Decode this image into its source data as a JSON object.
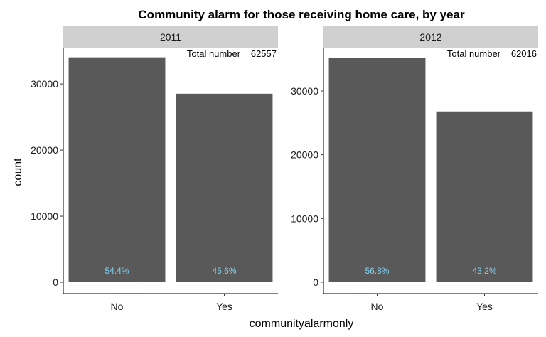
{
  "chart_data": {
    "type": "bar",
    "title": "Community alarm for those receiving home care, by year",
    "xlabel": "communityalarmonly",
    "ylabel": "count",
    "categories": [
      "No",
      "Yes"
    ],
    "grid": false,
    "bar_color": "#595959",
    "strip_color": "#d0d0d0",
    "pct_color": "#87ceeb",
    "panels": [
      {
        "strip": "2011",
        "annotation": "Total number = 62557",
        "values": [
          34031,
          28526
        ],
        "percent_labels": [
          "54.4%",
          "45.6%"
        ],
        "ylim": [
          0,
          35500
        ],
        "yticks": [
          0,
          10000,
          20000,
          30000
        ],
        "ytick_labels": [
          "0",
          "10000",
          "20000",
          "30000"
        ]
      },
      {
        "strip": "2012",
        "annotation": "Total number = 62016",
        "values": [
          35225,
          26791
        ],
        "percent_labels": [
          "56.8%",
          "43.2%"
        ],
        "ylim": [
          0,
          36800
        ],
        "yticks": [
          0,
          10000,
          20000,
          30000
        ],
        "ytick_labels": [
          "0",
          "10000",
          "20000",
          "30000"
        ]
      }
    ]
  }
}
